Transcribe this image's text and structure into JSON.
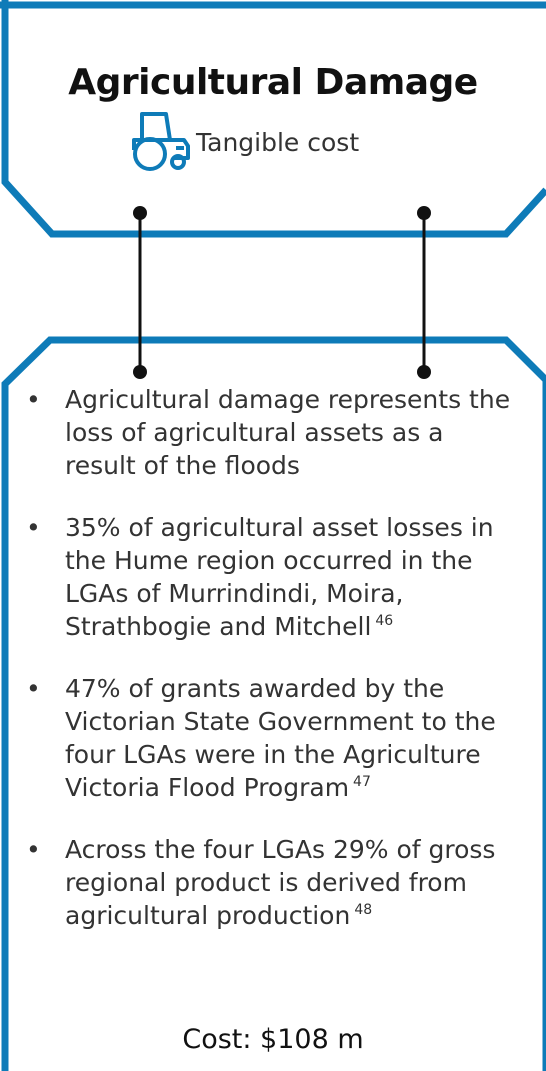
{
  "header": {
    "title": "Agricultural Damage",
    "subtitle": "Tangible cost"
  },
  "bullets": [
    {
      "text": "Agricultural damage represents the loss of agricultural assets as a result of the floods"
    },
    {
      "text": "35% of agricultural asset losses in the Hume region occurred in the LGAs of Murrindindi, Moira, Strathbogie and Mitchell",
      "note": "46"
    },
    {
      "text": "47% of grants awarded by the Victorian State Government to the four LGAs were in the Agriculture Victoria Flood Program",
      "note": "47"
    },
    {
      "text": "Across the four LGAs 29% of gross regional product is derived from agricultural production",
      "note": "48"
    }
  ],
  "cost": "Cost: $108 m"
}
